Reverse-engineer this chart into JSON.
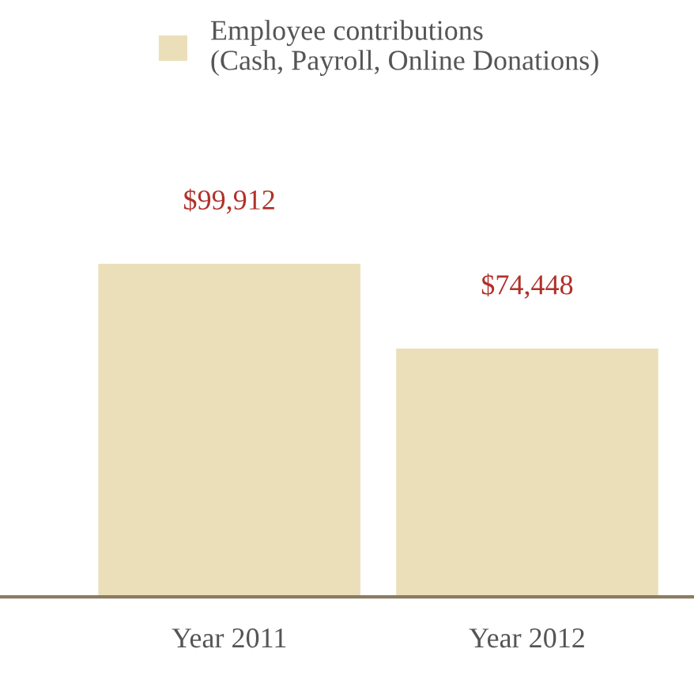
{
  "chart_data": {
    "type": "bar",
    "categories": [
      "Year 2011",
      "Year 2012"
    ],
    "series": [
      {
        "name": "Employee contributions\n(Cash, Payroll, Online Donations)",
        "color": "#ebdfba",
        "values": [
          99912,
          74448
        ],
        "value_labels": [
          "$99,912",
          "$74,448"
        ]
      }
    ],
    "legend": "top left",
    "grid": false
  }
}
